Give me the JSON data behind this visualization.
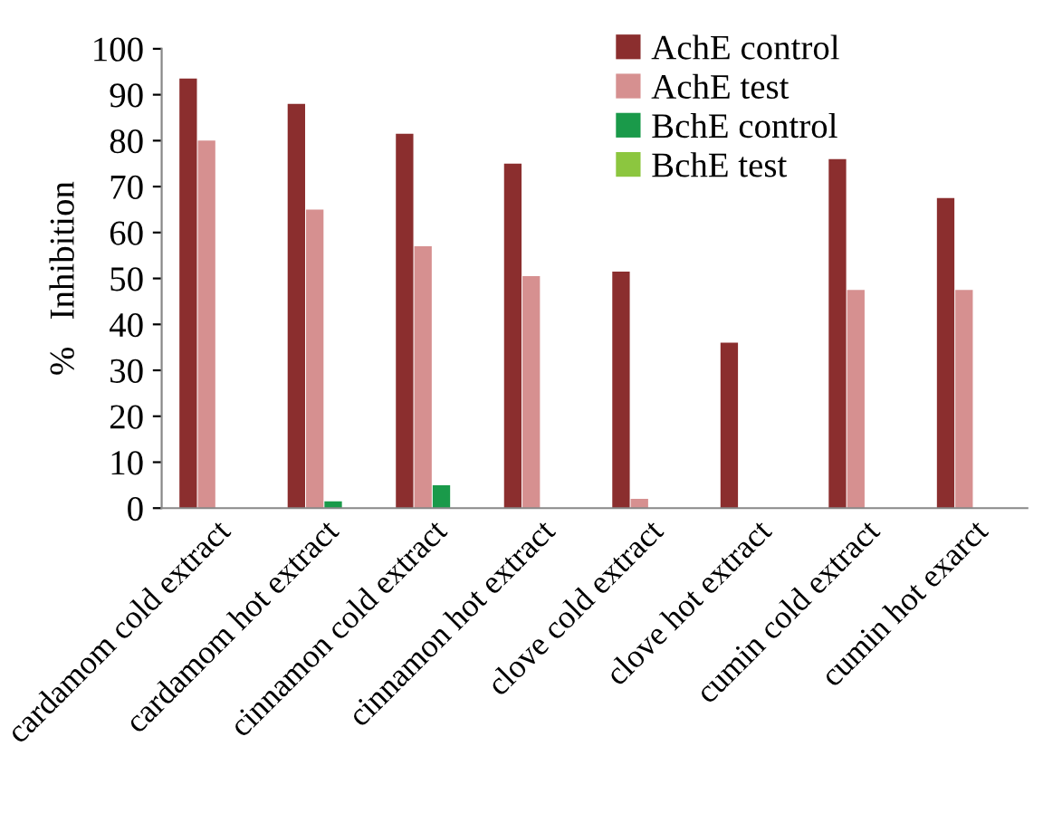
{
  "chart_data": {
    "type": "bar",
    "ylabel": "%   Inhibition",
    "categories": [
      "cardamom cold extract",
      "cardamom hot extract",
      "cinnamon cold extract",
      "cinnamon hot extract",
      "clove cold extract",
      "clove hot extract",
      "cumin cold extract",
      "cumin hot exarct"
    ],
    "series": [
      {
        "name": "AchE control",
        "color": "#8b2e2e",
        "values": [
          93.5,
          88,
          81.5,
          75,
          51.5,
          36,
          76,
          67.5
        ]
      },
      {
        "name": "AchE test",
        "color": "#d69090",
        "values": [
          80,
          65,
          57,
          50.5,
          2,
          0,
          47.5,
          47.5
        ]
      },
      {
        "name": "BchE control",
        "color": "#1a9a4a",
        "values": [
          0,
          1.5,
          5,
          0,
          0,
          0,
          0,
          0
        ]
      },
      {
        "name": "BchE test",
        "color": "#8cc63f",
        "values": [
          0,
          0,
          0,
          0,
          0,
          0,
          0,
          0
        ]
      }
    ],
    "ylim": [
      0,
      100
    ],
    "yticks": [
      0,
      10,
      20,
      30,
      40,
      50,
      60,
      70,
      80,
      90,
      100
    ],
    "grid": false,
    "legend": "top right"
  }
}
